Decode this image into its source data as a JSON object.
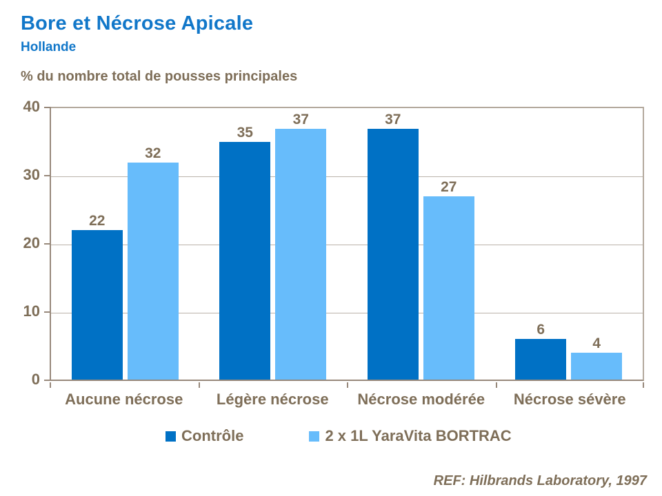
{
  "page": {
    "title": "Bore et Nécrose Apicale",
    "subtitle": "Hollande",
    "axis_caption": "% du nombre total de pousses principales",
    "reference": "REF: Hilbrands Laboratory, 1997"
  },
  "colors": {
    "title_blue": "#1177C9",
    "text_brown": "#7E6E58",
    "axis_line": "#97887A",
    "plot_border": "#B3A99D",
    "gridline": "#BAB2A9",
    "series_controle": "#0071C5",
    "series_bortrac": "#67BCFB"
  },
  "chart_data": {
    "type": "bar",
    "title": "Bore et Nécrose Apicale",
    "subtitle": "Hollande",
    "ylabel": "% du nombre total de pousses principales",
    "categories": [
      "Aucune nécrose",
      "Légère nécrose",
      "Nécrose modérée",
      "Nécrose sévère"
    ],
    "series": [
      {
        "name": "Contrôle",
        "values": [
          22,
          35,
          37,
          6
        ],
        "color": "#0071C5"
      },
      {
        "name": "2 x 1L YaraVita BORTRAC",
        "values": [
          32,
          37,
          27,
          4
        ],
        "color": "#67BCFB"
      }
    ],
    "ylim": [
      0,
      40
    ],
    "yticks": [
      0,
      10,
      20,
      30,
      40
    ],
    "grid": true,
    "legend_position": "bottom",
    "annotation": "REF: Hilbrands Laboratory, 1997"
  }
}
